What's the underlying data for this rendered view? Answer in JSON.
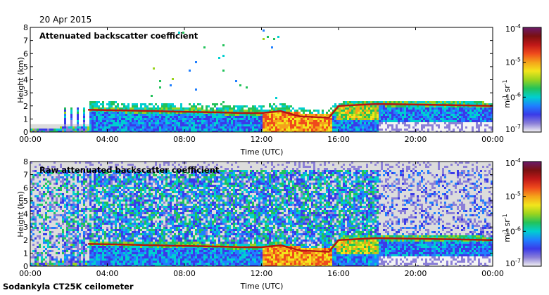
{
  "date_label": "20 Apr 2015",
  "footer": "Sodankyla CT25K ceilometer",
  "colors": {
    "background_fill": "#dcdcdc",
    "colormap": [
      "#f4f4f4",
      "#8b7fd8",
      "#3a3ae8",
      "#1f7fff",
      "#00cfd0",
      "#22c25a",
      "#9ad41e",
      "#f2e51c",
      "#f5a31a",
      "#ef4a1c",
      "#c01818",
      "#7a1010",
      "#6a1a6a"
    ]
  },
  "chart_data": [
    {
      "type": "heatmap",
      "title": "Attenuated backscatter coefficient",
      "xlabel": "Time (UTC)",
      "ylabel": "Height (km)",
      "x_ticks": [
        "00:00",
        "04:00",
        "08:00",
        "12:00",
        "16:00",
        "20:00",
        "00:00"
      ],
      "y_ticks": [
        "0",
        "1",
        "2",
        "3",
        "4",
        "5",
        "6",
        "7",
        "8"
      ],
      "ylim": [
        0,
        8
      ],
      "xlim_hours": [
        0,
        24
      ],
      "colorbar": {
        "label_base": "m",
        "label_exp1": "-1",
        "label_mid": " sr",
        "label_exp2": "-1",
        "scale": "log",
        "ticks": [
          {
            "base": "10",
            "exp": "-7"
          },
          {
            "base": "10",
            "exp": "-6"
          },
          {
            "base": "10",
            "exp": "-5"
          },
          {
            "base": "10",
            "exp": "-4"
          }
        ]
      },
      "boundary_layer_km": [
        [
          3.0,
          1.7
        ],
        [
          5.0,
          1.65
        ],
        [
          8.0,
          1.55
        ],
        [
          10.0,
          1.5
        ],
        [
          11.0,
          1.45
        ],
        [
          12.0,
          1.45
        ],
        [
          13.0,
          1.6
        ],
        [
          14.0,
          1.2
        ],
        [
          15.5,
          1.1
        ],
        [
          16.0,
          2.0
        ],
        [
          18.0,
          2.15
        ],
        [
          20.0,
          2.1
        ],
        [
          22.0,
          2.05
        ],
        [
          24.0,
          2.0
        ]
      ]
    },
    {
      "type": "heatmap",
      "title": "Raw attenuated backscatter coefficient",
      "xlabel": "Time (UTC)",
      "ylabel": "Height (km)",
      "x_ticks": [
        "00:00",
        "04:00",
        "08:00",
        "12:00",
        "16:00",
        "20:00",
        "00:00"
      ],
      "y_ticks": [
        "0",
        "1",
        "2",
        "3",
        "4",
        "5",
        "6",
        "7",
        "8"
      ],
      "ylim": [
        0,
        8
      ],
      "xlim_hours": [
        0,
        24
      ],
      "colorbar": {
        "label_base": "m",
        "label_exp1": "-1",
        "label_mid": " sr",
        "label_exp2": "-1",
        "scale": "log",
        "ticks": [
          {
            "base": "10",
            "exp": "-7"
          },
          {
            "base": "10",
            "exp": "-6"
          },
          {
            "base": "10",
            "exp": "-5"
          },
          {
            "base": "10",
            "exp": "-4"
          }
        ]
      },
      "boundary_layer_km": [
        [
          3.0,
          1.7
        ],
        [
          5.0,
          1.65
        ],
        [
          8.0,
          1.55
        ],
        [
          10.0,
          1.5
        ],
        [
          11.0,
          1.45
        ],
        [
          12.0,
          1.45
        ],
        [
          13.0,
          1.6
        ],
        [
          14.0,
          1.2
        ],
        [
          15.5,
          1.1
        ],
        [
          16.0,
          2.0
        ],
        [
          18.0,
          2.15
        ],
        [
          20.0,
          2.1
        ],
        [
          22.0,
          2.05
        ],
        [
          24.0,
          2.0
        ]
      ]
    }
  ]
}
